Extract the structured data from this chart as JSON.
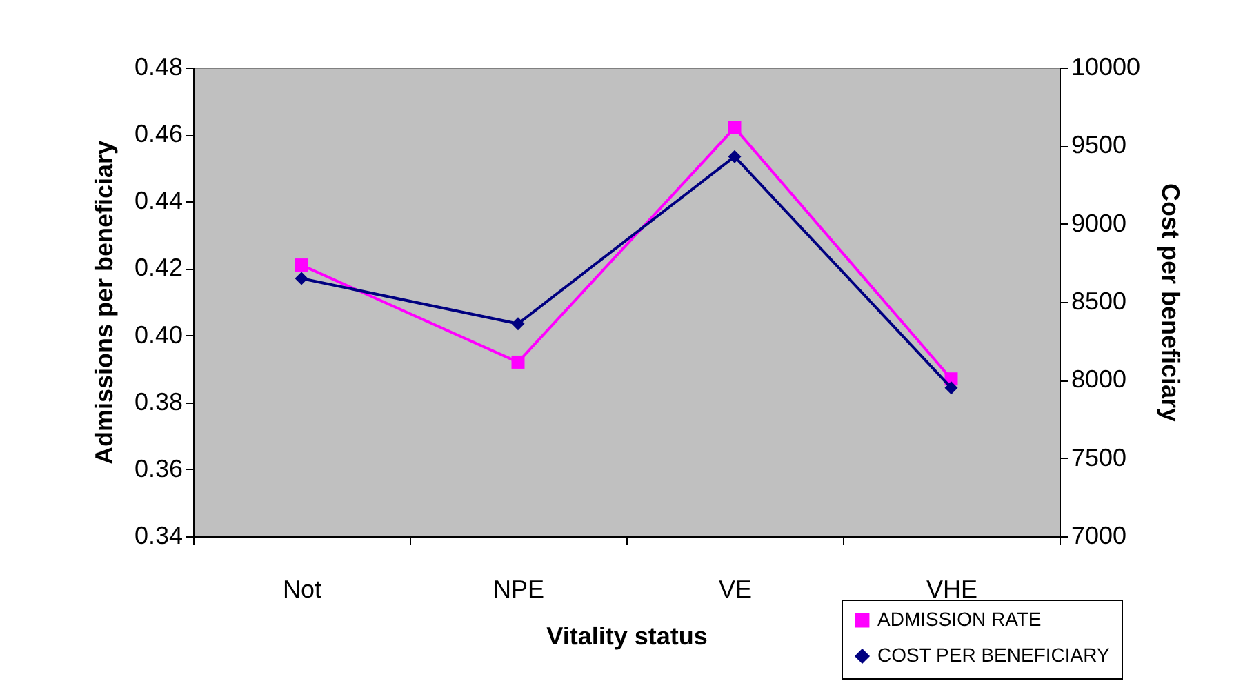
{
  "chart_data": {
    "type": "line",
    "xlabel": "Vitality status",
    "ylabel": "Admissions per beneficiary",
    "y2label": "Cost per beneficiary",
    "categories": [
      "Not",
      "NPE",
      "VE",
      "VHE"
    ],
    "series": [
      {
        "name": "ADMISSION RATE",
        "color": "#ff00ff",
        "marker": "square",
        "values": [
          0.421,
          0.392,
          0.462,
          0.387
        ]
      },
      {
        "name": "COST PER BENEFICIARY",
        "color": "#000080",
        "marker": "diamond",
        "axis": "y2",
        "values": [
          8650,
          8360,
          9430,
          7950
        ]
      }
    ],
    "ylim": [
      0.34,
      0.48
    ],
    "yticks": [
      0.34,
      0.36,
      0.38,
      {
        "value": 0.4,
        "label": "0.40"
      },
      0.42,
      0.44,
      0.46,
      0.48
    ],
    "y2lim": [
      7000,
      10000
    ],
    "y2ticks": [
      7000,
      7500,
      8000,
      8500,
      9000,
      9500,
      10000
    ],
    "grid": false,
    "legend": "bottom right"
  }
}
